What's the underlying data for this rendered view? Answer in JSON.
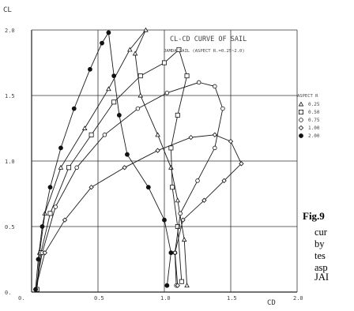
{
  "chart_data": {
    "type": "line",
    "title": "CL-CD CURVE OF SAIL",
    "subtitle": "JAMDA SAIL (ASPECT R.=0.25~2.0)",
    "xlabel": "CD",
    "ylabel": "CL",
    "xlim": [
      0.0,
      2.0
    ],
    "ylim": [
      0.0,
      2.0
    ],
    "xticks": [
      "0.",
      "0.5",
      "1.0",
      "1.5",
      "2.0"
    ],
    "yticks": [
      "0.",
      "0.5",
      "1.0",
      "1.5",
      "2.0"
    ],
    "grid": true,
    "legend": {
      "title": "ASPECT R",
      "position": "right",
      "entries": [
        {
          "marker": "△",
          "label": "0.25"
        },
        {
          "marker": "□",
          "label": "0.50"
        },
        {
          "marker": "$",
          "label": "0.75"
        },
        {
          "marker": "◇",
          "label": "1.00"
        },
        {
          "marker": "●",
          "label": "2.00"
        }
      ]
    },
    "series": [
      {
        "name": "0.25",
        "points": [
          [
            0.04,
            0.02
          ],
          [
            0.06,
            0.3
          ],
          [
            0.1,
            0.6
          ],
          [
            0.22,
            0.95
          ],
          [
            0.4,
            1.25
          ],
          [
            0.58,
            1.55
          ],
          [
            0.74,
            1.85
          ],
          [
            0.86,
            2.0
          ],
          [
            0.78,
            1.82
          ],
          [
            0.82,
            1.5
          ],
          [
            0.95,
            1.2
          ],
          [
            1.05,
            0.95
          ],
          [
            1.1,
            0.7
          ],
          [
            1.15,
            0.4
          ],
          [
            1.17,
            0.05
          ]
        ]
      },
      {
        "name": "0.50",
        "points": [
          [
            0.04,
            0.02
          ],
          [
            0.07,
            0.3
          ],
          [
            0.14,
            0.6
          ],
          [
            0.28,
            0.95
          ],
          [
            0.45,
            1.2
          ],
          [
            0.62,
            1.45
          ],
          [
            0.82,
            1.65
          ],
          [
            1.0,
            1.75
          ],
          [
            1.11,
            1.85
          ],
          [
            1.17,
            1.65
          ],
          [
            1.1,
            1.35
          ],
          [
            1.05,
            1.1
          ],
          [
            1.06,
            0.8
          ],
          [
            1.1,
            0.5
          ],
          [
            1.13,
            0.08
          ]
        ]
      },
      {
        "name": "0.75",
        "points": [
          [
            0.03,
            0.02
          ],
          [
            0.08,
            0.3
          ],
          [
            0.18,
            0.65
          ],
          [
            0.34,
            0.95
          ],
          [
            0.55,
            1.2
          ],
          [
            0.8,
            1.4
          ],
          [
            1.02,
            1.52
          ],
          [
            1.26,
            1.6
          ],
          [
            1.38,
            1.57
          ],
          [
            1.44,
            1.4
          ],
          [
            1.38,
            1.1
          ],
          [
            1.25,
            0.85
          ],
          [
            1.12,
            0.6
          ],
          [
            1.08,
            0.3
          ],
          [
            1.09,
            0.05
          ]
        ]
      },
      {
        "name": "1.00",
        "points": [
          [
            0.03,
            0.02
          ],
          [
            0.1,
            0.3
          ],
          [
            0.25,
            0.55
          ],
          [
            0.45,
            0.8
          ],
          [
            0.7,
            0.95
          ],
          [
            0.95,
            1.08
          ],
          [
            1.2,
            1.18
          ],
          [
            1.38,
            1.2
          ],
          [
            1.5,
            1.15
          ],
          [
            1.58,
            0.98
          ],
          [
            1.45,
            0.85
          ],
          [
            1.3,
            0.7
          ],
          [
            1.14,
            0.55
          ],
          [
            1.08,
            0.3
          ],
          [
            1.1,
            0.05
          ]
        ]
      },
      {
        "name": "2.00",
        "points": [
          [
            0.03,
            0.02
          ],
          [
            0.05,
            0.25
          ],
          [
            0.08,
            0.5
          ],
          [
            0.14,
            0.8
          ],
          [
            0.22,
            1.1
          ],
          [
            0.32,
            1.4
          ],
          [
            0.44,
            1.7
          ],
          [
            0.53,
            1.9
          ],
          [
            0.58,
            1.98
          ],
          [
            0.62,
            1.65
          ],
          [
            0.66,
            1.35
          ],
          [
            0.72,
            1.05
          ],
          [
            0.88,
            0.8
          ],
          [
            1.0,
            0.55
          ],
          [
            1.05,
            0.3
          ],
          [
            1.02,
            0.05
          ]
        ]
      }
    ]
  },
  "caption": {
    "label": "Fig.9",
    "lines": [
      "cur",
      "by",
      "tes",
      "asp",
      "JAI"
    ]
  }
}
